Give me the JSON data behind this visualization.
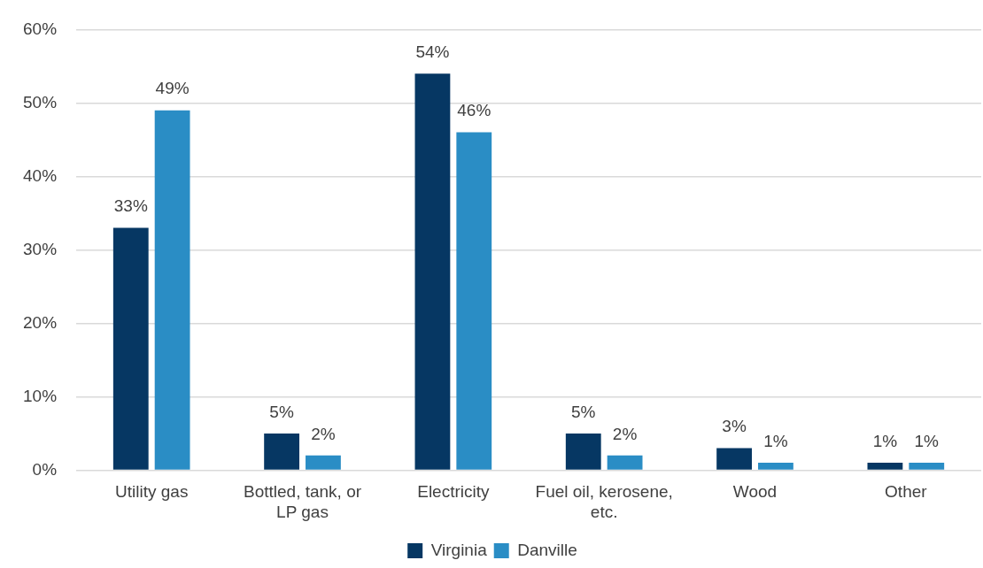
{
  "chart_data": {
    "type": "bar",
    "categories": [
      "Utility gas",
      "Bottled, tank, or LP gas",
      "Electricity",
      "Fuel oil, kerosene, etc.",
      "Wood",
      "Other"
    ],
    "series": [
      {
        "name": "Virginia",
        "color": "#063763",
        "values": [
          33,
          5,
          54,
          5,
          3,
          1
        ],
        "value_labels": [
          "33%",
          "5%",
          "54%",
          "5%",
          "3%",
          "1%"
        ]
      },
      {
        "name": "Danville",
        "color": "#2a8dc5",
        "values": [
          49,
          2,
          46,
          2,
          1,
          1
        ],
        "value_labels": [
          "49%",
          "2%",
          "46%",
          "2%",
          "1%",
          "1%"
        ]
      }
    ],
    "ylim": [
      0,
      60
    ],
    "yticks": [
      {
        "value": 0,
        "label": "0%"
      },
      {
        "value": 10,
        "label": "10%"
      },
      {
        "value": 20,
        "label": "20%"
      },
      {
        "value": 30,
        "label": "30%"
      },
      {
        "value": 40,
        "label": "40%"
      },
      {
        "value": 50,
        "label": "50%"
      },
      {
        "value": 60,
        "label": "60%"
      }
    ],
    "grid": "y",
    "legend": "bottom"
  }
}
